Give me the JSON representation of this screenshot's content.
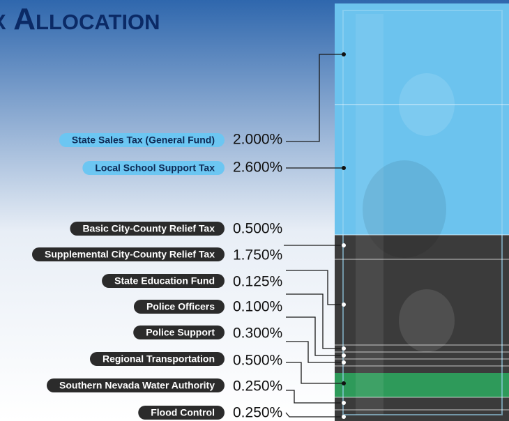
{
  "title": "x Allocation",
  "items": [
    {
      "label": "State Sales Tax (General Fund)",
      "percent": "2.000%"
    },
    {
      "label": "Local School Support Tax",
      "percent": "2.600%"
    },
    {
      "label": "Basic City-County Relief Tax",
      "percent": "0.500%"
    },
    {
      "label": "Supplemental City-County Relief Tax",
      "percent": "1.750%"
    },
    {
      "label": "State Education Fund",
      "percent": "0.125%"
    },
    {
      "label": "Police Officers",
      "percent": "0.100%"
    },
    {
      "label": "Police Support",
      "percent": "0.300%"
    },
    {
      "label": "Regional Transportation",
      "percent": "0.500%"
    },
    {
      "label": "Southern Nevada Water Authority",
      "percent": "0.250%"
    },
    {
      "label": "Flood Control",
      "percent": "0.250%"
    }
  ]
}
